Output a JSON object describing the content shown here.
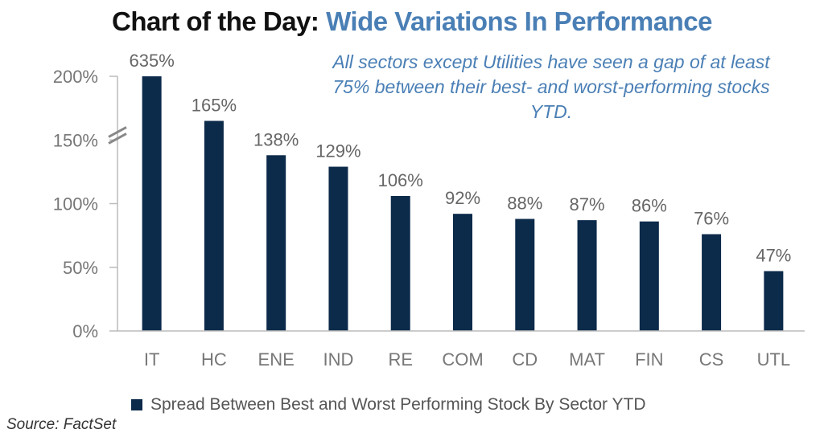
{
  "header": {
    "title_prefix": "Chart of the Day:",
    "title_highlight": "Wide Variations In Performance"
  },
  "annotation": "All sectors except Utilities have seen a gap of at least 75% between their best- and worst-performing stocks YTD.",
  "source": "Source: FactSet",
  "colors": {
    "bar": "#0c2a4a",
    "title_accent": "#4a7fb5",
    "axis_text": "#777777",
    "label_text": "#666666"
  },
  "chart_data": {
    "type": "bar",
    "categories": [
      "IT",
      "HC",
      "ENE",
      "IND",
      "RE",
      "COM",
      "CD",
      "MAT",
      "FIN",
      "CS",
      "UTL"
    ],
    "series": [
      {
        "name": "Spread Between Best and Worst Performing Stock By Sector YTD",
        "values": [
          635,
          165,
          138,
          129,
          106,
          92,
          88,
          87,
          86,
          76,
          47
        ],
        "labels": [
          "635%",
          "165%",
          "138%",
          "129%",
          "106%",
          "92%",
          "88%",
          "87%",
          "86%",
          "76%",
          "47%"
        ]
      }
    ],
    "ylim": [
      0,
      200
    ],
    "yticks": [
      0,
      50,
      100,
      150,
      200
    ],
    "ytick_labels": [
      "0%",
      "50%",
      "100%",
      "150%",
      "200%"
    ],
    "axis_break": true,
    "legend": "bottom",
    "grid": false
  }
}
